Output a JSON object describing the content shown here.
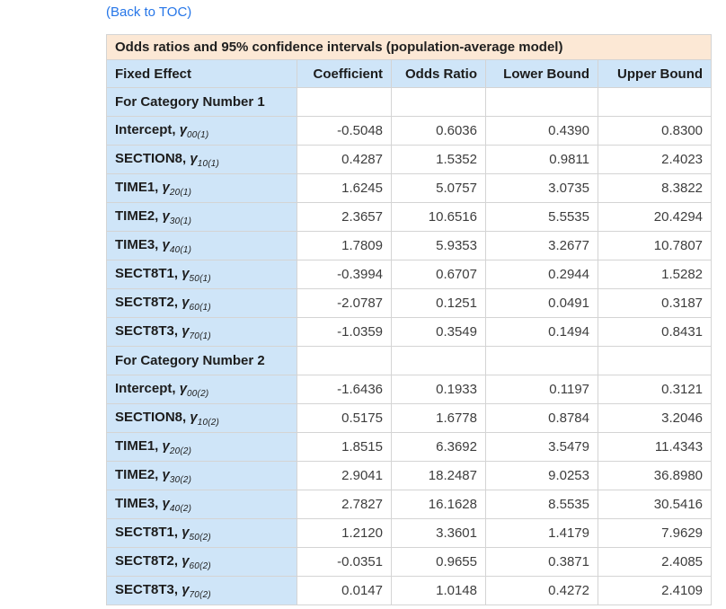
{
  "page": {
    "back_link": "(Back to TOC)"
  },
  "colors": {
    "link_blue": "#2676e8",
    "title_band_peach": "#fce8d5",
    "header_cell_blue": "#cfe5f8",
    "border_gray": "#d4d4d4"
  },
  "table": {
    "title": "Odds ratios and 95% confidence intervals (population-average model)",
    "gamma_symbol": "γ",
    "columns": [
      "Fixed Effect",
      "Coefficient",
      "Odds Ratio",
      "Lower Bound",
      "Upper Bound"
    ],
    "sections": [
      {
        "header": "For Category Number 1",
        "rows": [
          {
            "name": "Intercept,",
            "sub": "00(1)",
            "coefficient": "-0.5048",
            "odds_ratio": "0.6036",
            "lower_bound": "0.4390",
            "upper_bound": "0.8300"
          },
          {
            "name": "SECTION8,",
            "sub": "10(1)",
            "coefficient": "0.4287",
            "odds_ratio": "1.5352",
            "lower_bound": "0.9811",
            "upper_bound": "2.4023"
          },
          {
            "name": "TIME1,",
            "sub": "20(1)",
            "coefficient": "1.6245",
            "odds_ratio": "5.0757",
            "lower_bound": "3.0735",
            "upper_bound": "8.3822"
          },
          {
            "name": "TIME2,",
            "sub": "30(1)",
            "coefficient": "2.3657",
            "odds_ratio": "10.6516",
            "lower_bound": "5.5535",
            "upper_bound": "20.4294"
          },
          {
            "name": "TIME3,",
            "sub": "40(1)",
            "coefficient": "1.7809",
            "odds_ratio": "5.9353",
            "lower_bound": "3.2677",
            "upper_bound": "10.7807"
          },
          {
            "name": "SECT8T1,",
            "sub": "50(1)",
            "coefficient": "-0.3994",
            "odds_ratio": "0.6707",
            "lower_bound": "0.2944",
            "upper_bound": "1.5282"
          },
          {
            "name": "SECT8T2,",
            "sub": "60(1)",
            "coefficient": "-2.0787",
            "odds_ratio": "0.1251",
            "lower_bound": "0.0491",
            "upper_bound": "0.3187"
          },
          {
            "name": "SECT8T3,",
            "sub": "70(1)",
            "coefficient": "-1.0359",
            "odds_ratio": "0.3549",
            "lower_bound": "0.1494",
            "upper_bound": "0.8431"
          }
        ]
      },
      {
        "header": "For Category Number 2",
        "rows": [
          {
            "name": "Intercept,",
            "sub": "00(2)",
            "coefficient": "-1.6436",
            "odds_ratio": "0.1933",
            "lower_bound": "0.1197",
            "upper_bound": "0.3121"
          },
          {
            "name": "SECTION8,",
            "sub": "10(2)",
            "coefficient": "0.5175",
            "odds_ratio": "1.6778",
            "lower_bound": "0.8784",
            "upper_bound": "3.2046"
          },
          {
            "name": "TIME1,",
            "sub": "20(2)",
            "coefficient": "1.8515",
            "odds_ratio": "6.3692",
            "lower_bound": "3.5479",
            "upper_bound": "11.4343"
          },
          {
            "name": "TIME2,",
            "sub": "30(2)",
            "coefficient": "2.9041",
            "odds_ratio": "18.2487",
            "lower_bound": "9.0253",
            "upper_bound": "36.8980"
          },
          {
            "name": "TIME3,",
            "sub": "40(2)",
            "coefficient": "2.7827",
            "odds_ratio": "16.1628",
            "lower_bound": "8.5535",
            "upper_bound": "30.5416"
          },
          {
            "name": "SECT8T1,",
            "sub": "50(2)",
            "coefficient": "1.2120",
            "odds_ratio": "3.3601",
            "lower_bound": "1.4179",
            "upper_bound": "7.9629"
          },
          {
            "name": "SECT8T2,",
            "sub": "60(2)",
            "coefficient": "-0.0351",
            "odds_ratio": "0.9655",
            "lower_bound": "0.3871",
            "upper_bound": "2.4085"
          },
          {
            "name": "SECT8T3,",
            "sub": "70(2)",
            "coefficient": "0.0147",
            "odds_ratio": "1.0148",
            "lower_bound": "0.4272",
            "upper_bound": "2.4109"
          }
        ]
      }
    ]
  }
}
